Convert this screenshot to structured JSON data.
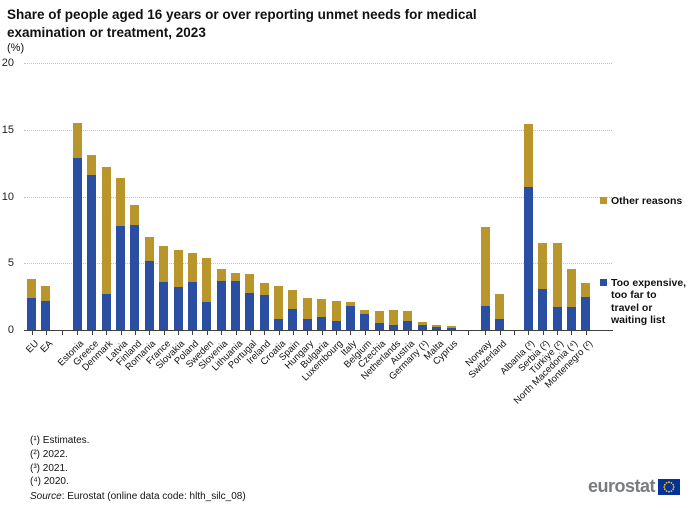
{
  "title": "Share of people aged 16 years or over reporting unmet needs for medical examination or treatment, 2023",
  "unit_label": "(%)",
  "legend": {
    "other_reasons": "Other reasons",
    "too_expensive": "Too expensive, too far to travel or waiting list"
  },
  "footnotes": {
    "f1": "(¹) Estimates.",
    "f2": "(²) 2022.",
    "f3": "(³) 2021.",
    "f4": "(⁴) 2020."
  },
  "source": {
    "prefix": "Source",
    "rest": ": Eurostat (online data code: hlth_silc_08)"
  },
  "logo_text": "eurostat",
  "colors": {
    "too_expensive_blue": "#2A4EA2",
    "other_reasons_gold": "#B8962B",
    "gridline": "#c3c3c3",
    "axis": "#404040",
    "logo_gray": "#7a7d80",
    "flag_blue": "#003399",
    "flag_stars": "#FFCC00"
  },
  "chart_data": {
    "type": "bar",
    "stacked": true,
    "title": "Share of people aged 16 years or over reporting unmet needs for medical examination or treatment, 2023",
    "ylabel": "(%)",
    "ylim": [
      0,
      20
    ],
    "yticks": [
      0,
      5,
      10,
      15,
      20
    ],
    "grid": "horizontal-dotted",
    "legend_position": "right",
    "categories": [
      "EU",
      "EA",
      "Estonia",
      "Greece",
      "Denmark",
      "Latvia",
      "Finland",
      "Romania",
      "France",
      "Slovakia",
      "Poland",
      "Sweden",
      "Slovenia",
      "Lithuania",
      "Portugal",
      "Ireland",
      "Croatia",
      "Spain",
      "Hungary",
      "Bulgaria",
      "Luxembourg",
      "Italy",
      "Belgium",
      "Czechia",
      "Netherlands",
      "Austria",
      "Germany (¹)",
      "Malta",
      "Cyprus",
      "Norway",
      "Switzerland",
      "Albania (³)",
      "Serbia (²)",
      "Türkiye (²)",
      "North Macedonia (⁴)",
      "Montenegro (²)"
    ],
    "gaps_after_indices": [
      1,
      28,
      30
    ],
    "series": [
      {
        "name": "Too expensive, too far to travel or waiting list",
        "color": "#2A4EA2",
        "values": [
          2.4,
          2.2,
          12.9,
          11.6,
          2.7,
          7.8,
          7.9,
          5.2,
          3.6,
          3.2,
          3.6,
          2.1,
          3.7,
          3.7,
          2.8,
          2.6,
          0.8,
          1.6,
          0.8,
          1.0,
          0.7,
          1.8,
          1.2,
          0.5,
          0.4,
          0.7,
          0.4,
          0.2,
          0.15,
          1.8,
          0.8,
          10.7,
          3.1,
          1.7,
          1.7,
          2.5
        ]
      },
      {
        "name": "Other reasons",
        "color": "#B8962B",
        "values": [
          1.4,
          1.1,
          2.6,
          1.5,
          9.5,
          3.6,
          1.5,
          1.8,
          2.7,
          2.8,
          2.2,
          3.3,
          0.9,
          0.6,
          1.4,
          0.9,
          2.5,
          1.4,
          1.6,
          1.3,
          1.5,
          0.3,
          0.3,
          0.9,
          1.1,
          0.7,
          0.2,
          0.2,
          0.15,
          5.9,
          1.9,
          4.7,
          3.4,
          4.8,
          2.9,
          1.0
        ]
      }
    ]
  }
}
